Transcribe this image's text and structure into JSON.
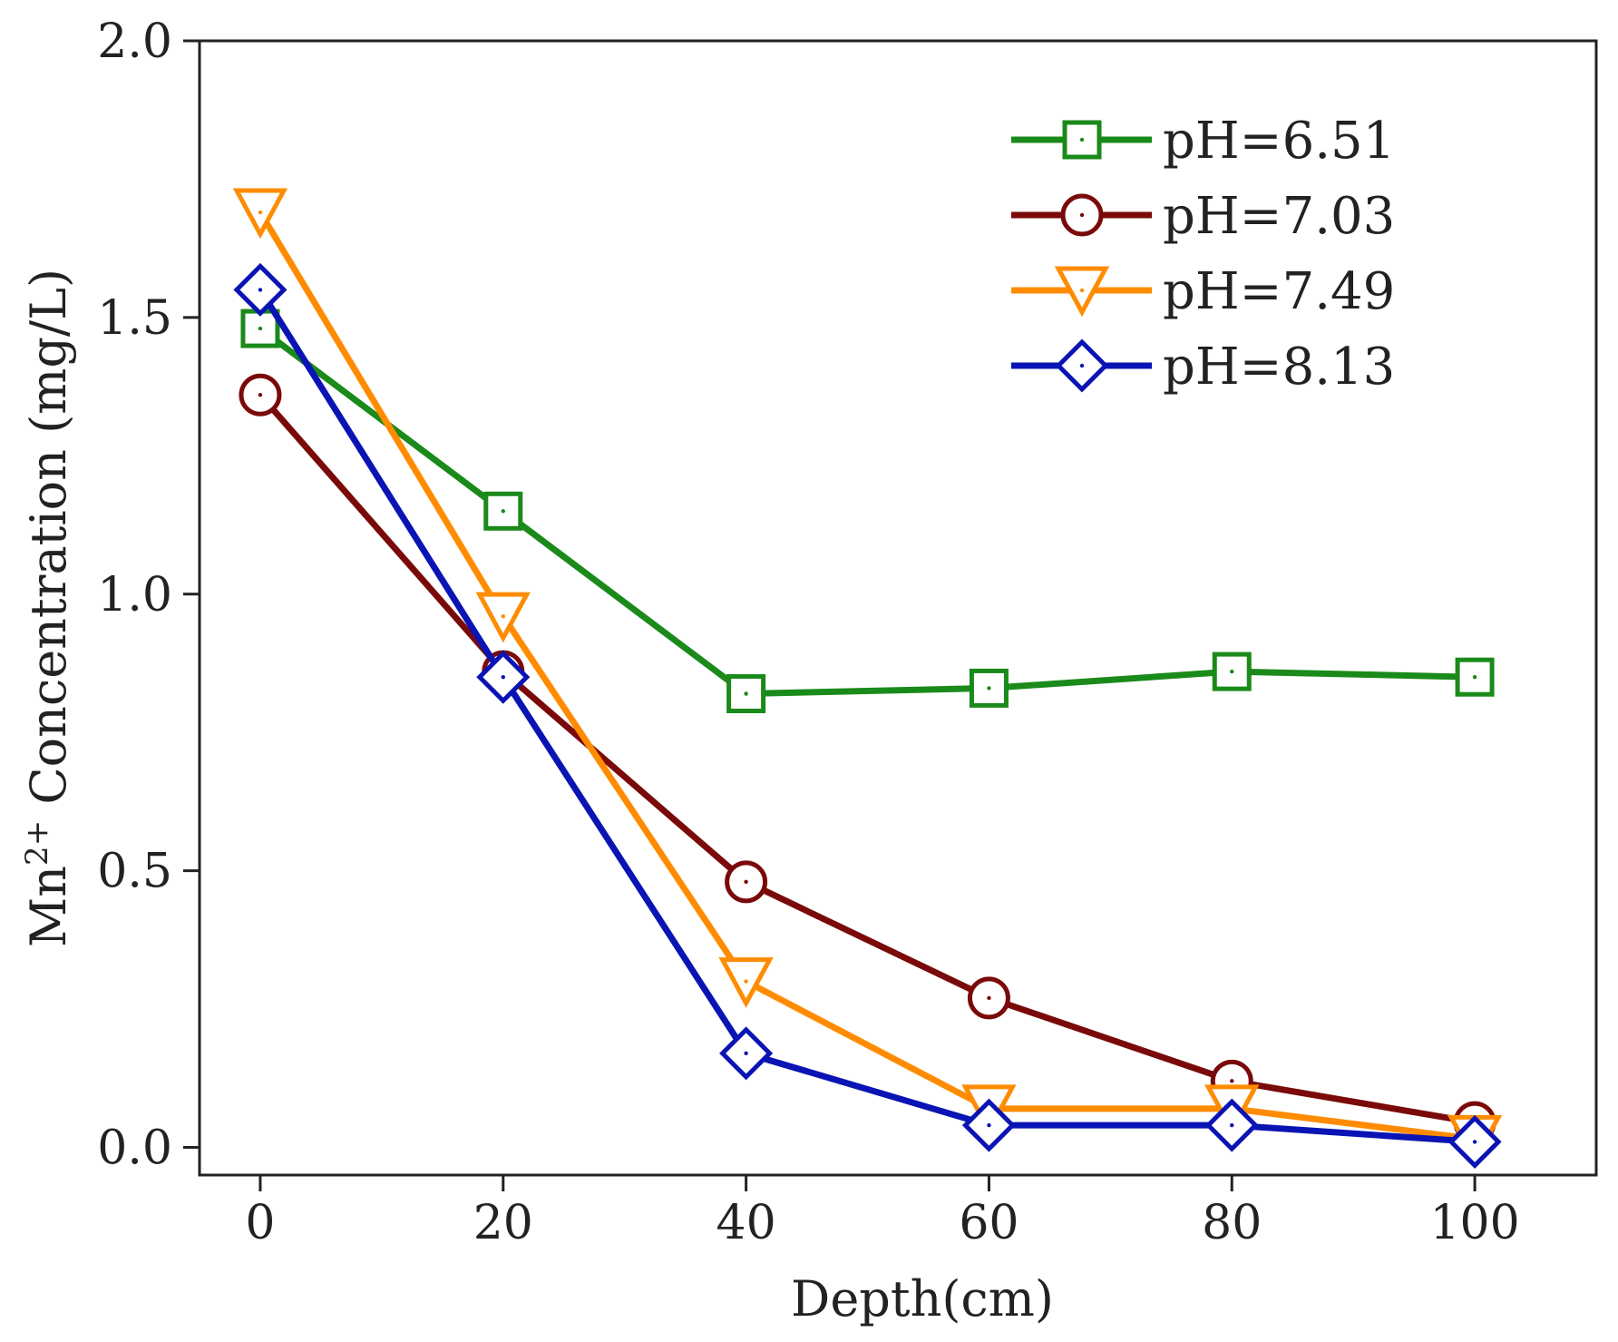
{
  "chart_data": {
    "type": "line",
    "xlabel": "Depth(cm)",
    "ylabel": {
      "prefix": "Mn",
      "superscript": "2+",
      "suffix": " Concentration (mg/L)"
    },
    "x": [
      0,
      20,
      40,
      60,
      80,
      100
    ],
    "xlim": [
      -5,
      110
    ],
    "ylim": [
      -0.05,
      2.0
    ],
    "xticks": [
      0,
      20,
      40,
      60,
      80,
      100
    ],
    "xtick_labels": [
      "0",
      "20",
      "40",
      "60",
      "80",
      "100"
    ],
    "yticks": [
      0.0,
      0.5,
      1.0,
      1.5,
      2.0
    ],
    "ytick_labels": [
      "0.0",
      "0.5",
      "1.0",
      "1.5",
      "2.0"
    ],
    "grid": false,
    "legend_position": "top-right",
    "series": [
      {
        "name": "pH=6.51",
        "marker": "square",
        "color": "#1a8a1a",
        "values": [
          1.48,
          1.15,
          0.82,
          0.83,
          0.86,
          0.85
        ]
      },
      {
        "name": "pH=7.03",
        "marker": "circle",
        "color": "#7a0a0a",
        "values": [
          1.36,
          0.86,
          0.48,
          0.27,
          0.12,
          0.045
        ]
      },
      {
        "name": "pH=7.49",
        "marker": "triangle-down",
        "color": "#ff8c00",
        "values": [
          1.69,
          0.96,
          0.3,
          0.07,
          0.07,
          0.015
        ]
      },
      {
        "name": "pH=8.13",
        "marker": "diamond",
        "color": "#0a14b4",
        "values": [
          1.55,
          0.85,
          0.17,
          0.04,
          0.04,
          0.01
        ]
      }
    ]
  }
}
